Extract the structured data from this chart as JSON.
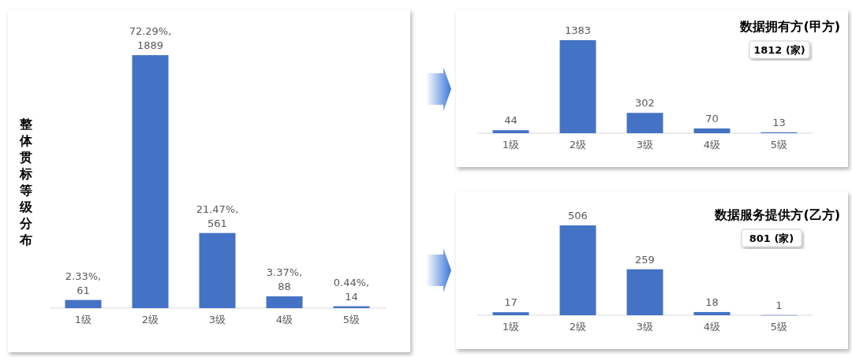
{
  "chart_data": [
    {
      "type": "bar",
      "ylabel": "整体贯标等级分布",
      "categories": [
        "1级",
        "2级",
        "3级",
        "4级",
        "5级"
      ],
      "values": [
        61,
        1889,
        561,
        88,
        14
      ],
      "color": "#4472c4",
      "value_labels": [
        "2.33%,\n61",
        "72.29%,\n1889",
        "21.47%,\n561",
        "3.37%,\n88",
        "0.44%,\n14"
      ]
    },
    {
      "type": "bar",
      "title": "数据拥有方(甲方)",
      "annotations": [
        "1812 (家)"
      ],
      "categories": [
        "1级",
        "2级",
        "3级",
        "4级",
        "5级"
      ],
      "values": [
        44,
        1383,
        302,
        70,
        13
      ],
      "color": "#4472c4",
      "data_labels": true
    },
    {
      "type": "bar",
      "title": "数据服务提供方(乙方)",
      "annotations": [
        "801 (家)"
      ],
      "categories": [
        "1级",
        "2级",
        "3级",
        "4级",
        "5级"
      ],
      "values": [
        17,
        506,
        259,
        18,
        1
      ],
      "color": "#4472c4",
      "data_labels": true
    }
  ]
}
